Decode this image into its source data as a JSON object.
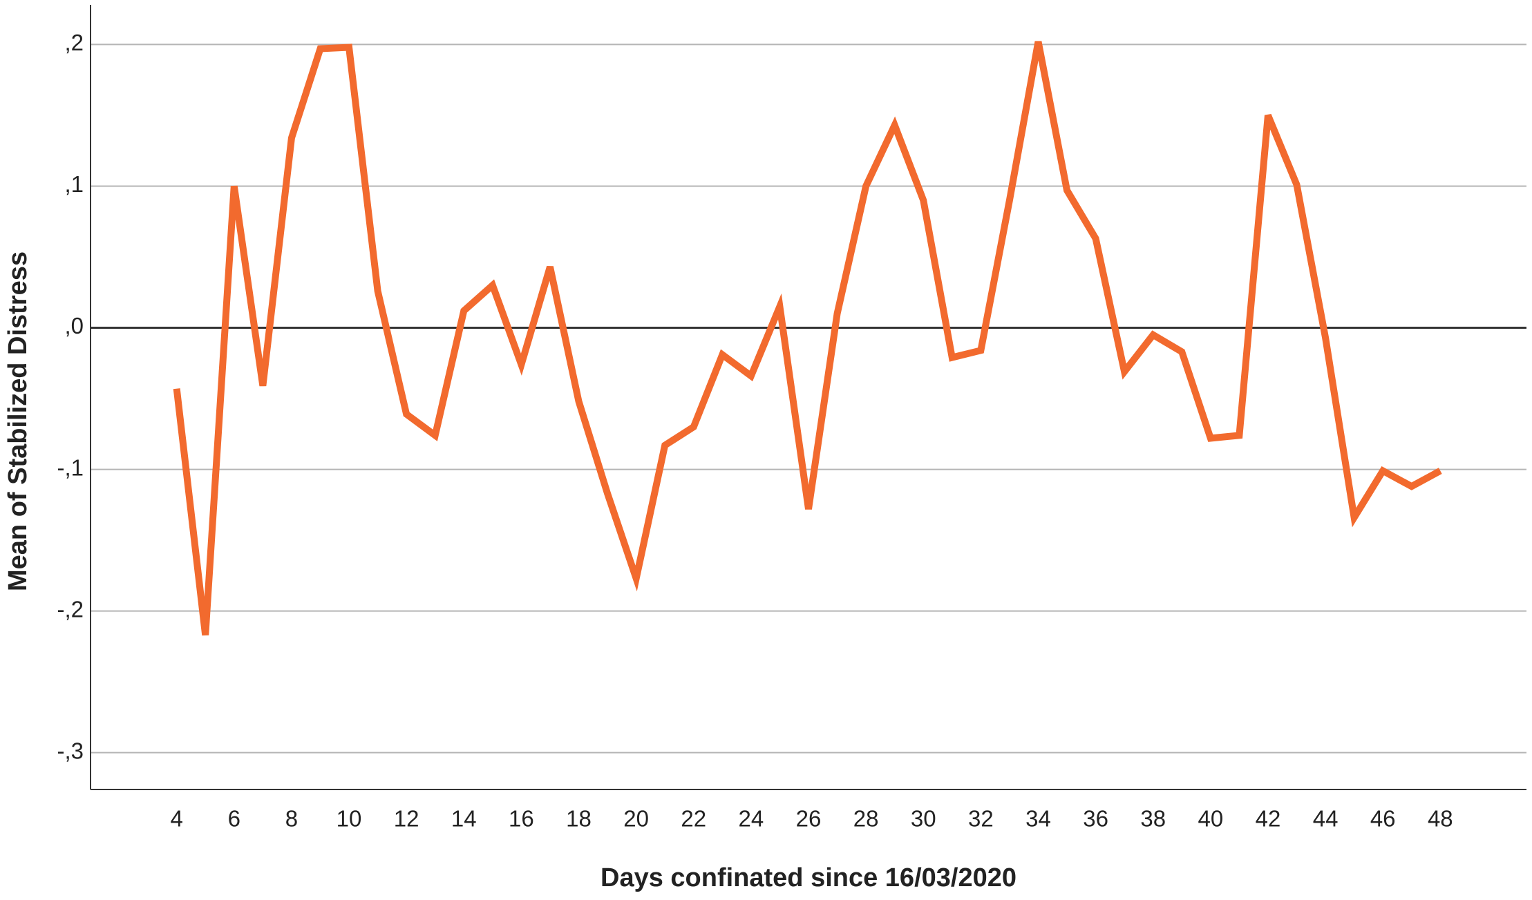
{
  "chart_data": {
    "type": "line",
    "x_label": "Days confinated since 16/03/2020",
    "y_label": "Mean of Stabilized Distress",
    "x": [
      4,
      5,
      6,
      7,
      8,
      9,
      10,
      11,
      12,
      13,
      14,
      15,
      16,
      17,
      18,
      19,
      20,
      21,
      22,
      23,
      24,
      25,
      26,
      27,
      28,
      29,
      30,
      31,
      32,
      33,
      34,
      35,
      36,
      37,
      38,
      39,
      40,
      41,
      42,
      43,
      44,
      45,
      46,
      47,
      48
    ],
    "series": [
      {
        "color": "#f26a2e",
        "values": [
          -0.043,
          -0.217,
          0.1,
          -0.041,
          0.134,
          0.197,
          0.198,
          0.026,
          -0.061,
          -0.076,
          0.012,
          0.03,
          -0.026,
          0.043,
          -0.052,
          -0.117,
          -0.177,
          -0.083,
          -0.07,
          -0.019,
          -0.034,
          0.015,
          -0.128,
          0.01,
          0.1,
          0.143,
          0.09,
          -0.021,
          -0.016,
          0.09,
          0.202,
          0.097,
          0.063,
          -0.031,
          -0.005,
          -0.017,
          -0.078,
          -0.076,
          0.15,
          0.101,
          -0.007,
          -0.134,
          -0.101,
          -0.112,
          -0.101
        ]
      }
    ],
    "xlim": [
      1,
      51
    ],
    "xticks": [
      4,
      6,
      8,
      10,
      12,
      14,
      16,
      18,
      20,
      22,
      24,
      26,
      28,
      30,
      32,
      34,
      36,
      38,
      40,
      42,
      44,
      46,
      48
    ],
    "ylim": [
      -0.326,
      0.228
    ],
    "yticks": [
      {
        "value": -0.3,
        "label": "-,3"
      },
      {
        "value": -0.2,
        "label": "-,2"
      },
      {
        "value": -0.1,
        "label": "-,1"
      },
      {
        "value": 0,
        "label": ",0"
      },
      {
        "value": 0.1,
        "label": ",1"
      },
      {
        "value": 0.2,
        "label": ",2"
      }
    ],
    "grid": true
  }
}
